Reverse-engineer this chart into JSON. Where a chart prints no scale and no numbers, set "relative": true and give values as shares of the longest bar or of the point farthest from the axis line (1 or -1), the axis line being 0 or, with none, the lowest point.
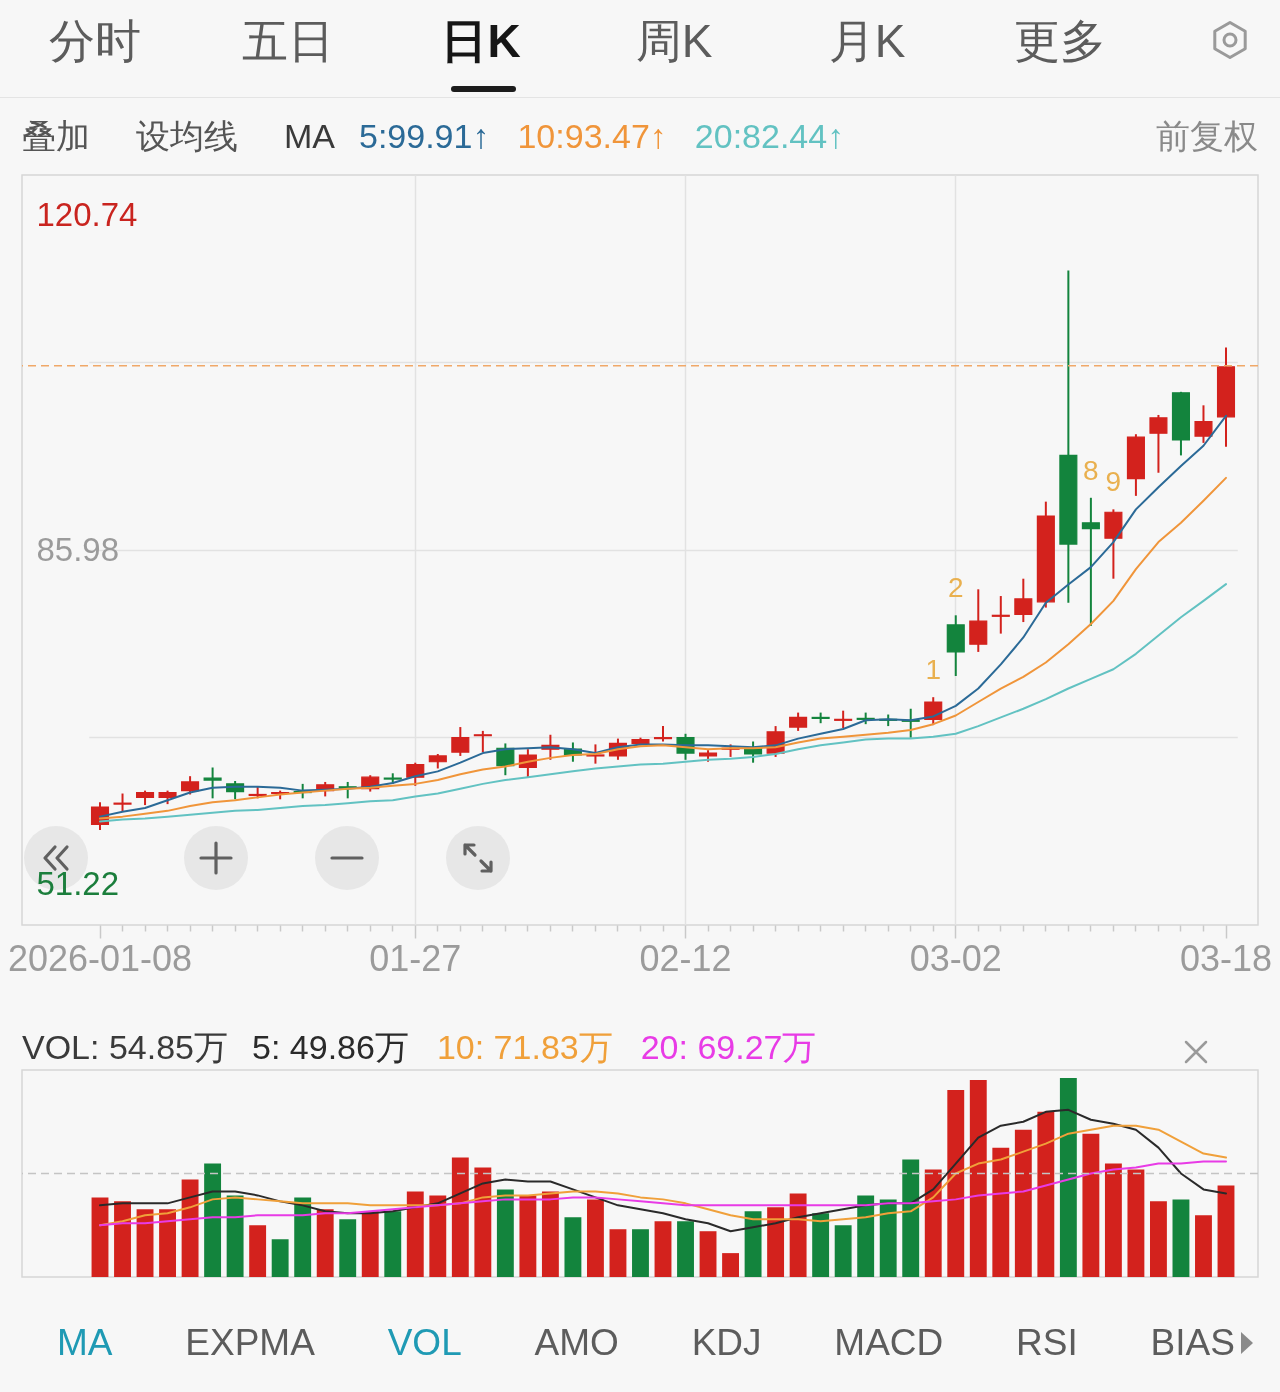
{
  "chart_data": [
    {
      "type": "other",
      "annotations": [
        "分时",
        "五日",
        "日K",
        "周K",
        "月K",
        "更多"
      ]
    },
    {
      "type": "candlestick",
      "annotations": [
        "叠加",
        "设均线",
        "前复权"
      ],
      "legend": "top left",
      "legend_title": "MA",
      "grid": true,
      "categories": [
        "2026-01-08",
        null,
        null,
        null,
        null,
        null,
        null,
        null,
        null,
        null,
        null,
        null,
        null,
        null,
        "01-27",
        null,
        null,
        null,
        null,
        null,
        null,
        null,
        null,
        null,
        null,
        null,
        "02-12",
        null,
        null,
        null,
        null,
        null,
        null,
        null,
        null,
        null,
        null,
        null,
        "03-02",
        null,
        null,
        null,
        null,
        null,
        null,
        null,
        null,
        null,
        null,
        null,
        "03-18"
      ],
      "ylim": [
        47.05,
        124.91
      ],
      "yticks": [
        51.22,
        {
          "value": 66.52,
          "label": null
        },
        85.98,
        {
          "value": 105.45,
          "label": null
        },
        120.74
      ],
      "ohlc": [
        [
          57.5,
          59.8,
          56.9,
          59.3
        ],
        [
          59.6,
          60.7,
          58.8,
          59.7
        ],
        [
          60.3,
          61.0,
          59.5,
          60.8
        ],
        [
          60.3,
          61.0,
          59.6,
          60.8
        ],
        [
          61.0,
          62.5,
          60.6,
          61.9
        ],
        [
          62.3,
          63.4,
          60.2,
          62.1
        ],
        [
          61.7,
          62.0,
          60.1,
          60.9
        ],
        [
          60.5,
          61.4,
          60.2,
          60.6
        ],
        [
          60.7,
          61.0,
          60.1,
          60.8
        ],
        [
          60.9,
          61.7,
          60.2,
          60.8
        ],
        [
          61.0,
          61.9,
          60.4,
          61.6
        ],
        [
          61.4,
          61.9,
          60.2,
          61.3
        ],
        [
          61.2,
          62.6,
          60.9,
          62.4
        ],
        [
          62.3,
          62.8,
          61.7,
          62.2
        ],
        [
          62.4,
          63.9,
          61.5,
          63.7
        ],
        [
          64.0,
          64.8,
          63.3,
          64.6
        ],
        [
          65.0,
          67.6,
          64.6,
          66.5
        ],
        [
          66.7,
          67.2,
          65.0,
          66.8
        ],
        [
          65.4,
          65.9,
          62.6,
          63.6
        ],
        [
          63.4,
          65.3,
          62.4,
          64.7
        ],
        [
          65.3,
          66.8,
          64.2,
          65.7
        ],
        [
          65.3,
          66.0,
          64.0,
          64.7
        ],
        [
          64.6,
          65.8,
          63.8,
          64.7
        ],
        [
          64.6,
          66.4,
          64.2,
          65.9
        ],
        [
          65.9,
          66.5,
          65.7,
          66.3
        ],
        [
          66.4,
          67.7,
          66.1,
          66.5
        ],
        [
          66.5,
          66.9,
          64.2,
          64.9
        ],
        [
          64.6,
          65.2,
          64.0,
          64.9
        ],
        [
          65.3,
          65.8,
          64.5,
          65.4
        ],
        [
          65.4,
          66.1,
          63.9,
          64.8
        ],
        [
          64.9,
          67.7,
          64.5,
          67.1
        ],
        [
          67.6,
          69.1,
          67.2,
          68.6
        ],
        [
          68.6,
          69.1,
          68.0,
          68.5
        ],
        [
          68.3,
          69.3,
          67.5,
          68.4
        ],
        [
          68.5,
          69.1,
          67.9,
          68.4
        ],
        [
          68.4,
          68.9,
          67.7,
          68.3
        ],
        [
          68.3,
          69.5,
          66.5,
          68.2
        ],
        [
          68.4,
          70.7,
          67.8,
          70.2
        ],
        [
          78.2,
          79.2,
          72.9,
          75.4
        ],
        [
          76.2,
          81.9,
          75.4,
          78.6
        ],
        [
          79.1,
          81.2,
          77.3,
          79.2
        ],
        [
          79.3,
          83.0,
          78.5,
          80.9
        ],
        [
          80.6,
          91.0,
          80.0,
          89.5
        ],
        [
          95.8,
          115.0,
          80.5,
          86.6
        ],
        [
          88.8,
          91.4,
          78.1,
          88.2
        ],
        [
          87.2,
          90.2,
          83.0,
          89.9
        ],
        [
          93.4,
          98.0,
          91.6,
          97.7
        ],
        [
          98.1,
          100.0,
          94.0,
          99.7
        ],
        [
          102.3,
          102.4,
          95.8,
          97.4
        ],
        [
          97.8,
          101.0,
          97.1,
          99.3
        ],
        [
          99.8,
          107.0,
          96.7,
          105.0
        ]
      ],
      "colors": [
        "#d3221d",
        "#d3221d",
        "#d3221d",
        "#d3221d",
        "#d3221d",
        "#13843d",
        "#13843d",
        "#d3221d",
        "#d3221d",
        "#13843d",
        "#d3221d",
        "#13843d",
        "#d3221d",
        "#13843d",
        "#d3221d",
        "#d3221d",
        "#d3221d",
        "#d3221d",
        "#13843d",
        "#d3221d",
        "#d3221d",
        "#13843d",
        "#d3221d",
        "#d3221d",
        "#d3221d",
        "#d3221d",
        "#13843d",
        "#d3221d",
        "#d3221d",
        "#13843d",
        "#d3221d",
        "#d3221d",
        "#13843d",
        "#d3221d",
        "#13843d",
        "#13843d",
        "#13843d",
        "#d3221d",
        "#13843d",
        "#d3221d",
        "#d3221d",
        "#d3221d",
        "#d3221d",
        "#13843d",
        "#13843d",
        "#d3221d",
        "#d3221d",
        "#d3221d",
        "#13843d",
        "#d3221d",
        "#d3221d"
      ],
      "value_labels": [
        null,
        null,
        null,
        null,
        null,
        null,
        null,
        null,
        null,
        null,
        null,
        null,
        null,
        null,
        null,
        null,
        null,
        null,
        null,
        null,
        null,
        null,
        null,
        null,
        null,
        null,
        null,
        null,
        null,
        null,
        null,
        null,
        null,
        null,
        null,
        null,
        null,
        "1",
        "2",
        null,
        null,
        null,
        null,
        null,
        "8",
        "9",
        null,
        null,
        null,
        null,
        null
      ],
      "series": [
        {
          "name": "5:99.91↑",
          "type": "line",
          "color": "#2b6a97",
          "values": [
            58.3,
            58.8,
            59.2,
            60.0,
            60.8,
            61.3,
            61.4,
            61.4,
            61.3,
            61.0,
            61.1,
            61.2,
            61.4,
            61.8,
            62.5,
            63.0,
            63.9,
            64.9,
            65.3,
            65.4,
            65.5,
            65.3,
            64.9,
            65.5,
            65.8,
            65.8,
            65.7,
            65.7,
            65.6,
            65.5,
            65.7,
            66.4,
            66.9,
            67.4,
            68.3,
            68.4,
            68.3,
            68.7,
            69.8,
            71.6,
            74.1,
            76.9,
            80.5,
            82.4,
            84.2,
            86.8,
            90.2,
            92.5,
            94.7,
            96.8,
            99.91
          ]
        },
        {
          "name": "10:93.47↑",
          "type": "line",
          "color": "#f0953a",
          "values": [
            58.1,
            58.3,
            58.6,
            58.9,
            59.4,
            59.8,
            60.0,
            60.3,
            60.6,
            60.8,
            61.0,
            61.2,
            61.3,
            61.5,
            61.7,
            62.1,
            62.7,
            63.2,
            63.5,
            64.0,
            64.4,
            64.7,
            64.8,
            65.3,
            65.6,
            65.7,
            65.5,
            65.3,
            65.4,
            65.4,
            65.5,
            66.0,
            66.4,
            66.6,
            66.8,
            67.0,
            67.3,
            67.9,
            68.8,
            70.2,
            71.6,
            72.8,
            74.3,
            76.2,
            78.3,
            80.7,
            84.0,
            86.8,
            88.8,
            91.1,
            93.47
          ]
        },
        {
          "name": "20:82.44↑",
          "type": "line",
          "color": "#62c2c2",
          "values": [
            57.8,
            58.0,
            58.1,
            58.3,
            58.5,
            58.7,
            58.9,
            59.0,
            59.2,
            59.4,
            59.5,
            59.7,
            59.9,
            60.0,
            60.4,
            60.7,
            61.2,
            61.7,
            62.1,
            62.4,
            62.7,
            63.0,
            63.3,
            63.5,
            63.7,
            63.8,
            64.0,
            64.2,
            64.3,
            64.5,
            64.8,
            65.3,
            65.7,
            66.0,
            66.3,
            66.4,
            66.4,
            66.6,
            66.9,
            67.7,
            68.6,
            69.5,
            70.5,
            71.6,
            72.6,
            73.6,
            75.2,
            77.1,
            79.0,
            80.7,
            82.44
          ]
        }
      ],
      "ref_lines": [
        {
          "axis": "y",
          "value": 105.1,
          "color": "#f0a868",
          "line_style": "dashed"
        }
      ]
    },
    {
      "type": "bar",
      "relative": true,
      "legend": "top left",
      "legend_title": "VOL: 54.85万",
      "categories": [
        null,
        null,
        null,
        null,
        null,
        null,
        null,
        null,
        null,
        null,
        null,
        null,
        null,
        null,
        null,
        null,
        null,
        null,
        null,
        null,
        null,
        null,
        null,
        null,
        null,
        null,
        null,
        null,
        null,
        null,
        null,
        null,
        null,
        null,
        null,
        null,
        null,
        null,
        null,
        null,
        null,
        null,
        null,
        null,
        null,
        null,
        null,
        null,
        null,
        null,
        null
      ],
      "series": [
        {
          "type": "bar",
          "colors": [
            "#d3221d",
            "#d3221d",
            "#d3221d",
            "#d3221d",
            "#d3221d",
            "#13843d",
            "#13843d",
            "#d3221d",
            "#13843d",
            "#13843d",
            "#d3221d",
            "#13843d",
            "#d3221d",
            "#13843d",
            "#d3221d",
            "#d3221d",
            "#d3221d",
            "#d3221d",
            "#13843d",
            "#d3221d",
            "#d3221d",
            "#13843d",
            "#d3221d",
            "#d3221d",
            "#13843d",
            "#d3221d",
            "#13843d",
            "#d3221d",
            "#d3221d",
            "#13843d",
            "#d3221d",
            "#d3221d",
            "#13843d",
            "#13843d",
            "#13843d",
            "#13843d",
            "#13843d",
            "#d3221d",
            "#d3221d",
            "#d3221d",
            "#d3221d",
            "#d3221d",
            "#d3221d",
            "#13843d",
            "#d3221d",
            "#d3221d",
            "#d3221d",
            "#d3221d",
            "#13843d",
            "#d3221d",
            "#d3221d"
          ],
          "values": [
            0.4,
            0.38,
            0.34,
            0.34,
            0.49,
            0.57,
            0.41,
            0.26,
            0.19,
            0.4,
            0.34,
            0.29,
            0.33,
            0.33,
            0.43,
            0.41,
            0.6,
            0.55,
            0.44,
            0.41,
            0.43,
            0.3,
            0.39,
            0.24,
            0.24,
            0.28,
            0.28,
            0.23,
            0.12,
            0.33,
            0.35,
            0.42,
            0.32,
            0.26,
            0.41,
            0.39,
            0.59,
            0.54,
            0.94,
            0.99,
            0.65,
            0.74,
            0.83,
            1,
            0.72,
            0.57,
            0.54,
            0.38,
            0.39,
            0.31,
            0.46
          ]
        },
        {
          "name": "5: 49.86万",
          "type": "line",
          "color": "#2a2a2a",
          "values": [
            0.36,
            0.37,
            0.37,
            0.37,
            0.4,
            0.43,
            0.43,
            0.41,
            0.38,
            0.36,
            0.33,
            0.32,
            0.32,
            0.33,
            0.35,
            0.37,
            0.42,
            0.47,
            0.49,
            0.48,
            0.48,
            0.44,
            0.4,
            0.36,
            0.34,
            0.32,
            0.29,
            0.27,
            0.23,
            0.25,
            0.27,
            0.3,
            0.32,
            0.34,
            0.36,
            0.37,
            0.37,
            0.44,
            0.57,
            0.7,
            0.76,
            0.78,
            0.83,
            0.84,
            0.79,
            0.77,
            0.74,
            0.65,
            0.52,
            0.44,
            0.42
          ]
        },
        {
          "name": "10: 71.83万",
          "type": "line",
          "color": "#f0a03a",
          "values": [
            0.26,
            0.28,
            0.31,
            0.32,
            0.35,
            0.39,
            0.4,
            0.39,
            0.38,
            0.37,
            0.37,
            0.37,
            0.36,
            0.36,
            0.36,
            0.36,
            0.37,
            0.4,
            0.41,
            0.41,
            0.42,
            0.43,
            0.43,
            0.42,
            0.4,
            0.39,
            0.37,
            0.34,
            0.31,
            0.29,
            0.29,
            0.29,
            0.28,
            0.29,
            0.3,
            0.32,
            0.33,
            0.4,
            0.52,
            0.57,
            0.59,
            0.63,
            0.67,
            0.72,
            0.74,
            0.76,
            0.76,
            0.74,
            0.68,
            0.62,
            0.6
          ]
        },
        {
          "name": "20: 69.27万",
          "type": "line",
          "color": "#e83be6",
          "values": [
            0.26,
            0.27,
            0.27,
            0.28,
            0.29,
            0.3,
            0.3,
            0.31,
            0.31,
            0.31,
            0.32,
            0.32,
            0.33,
            0.34,
            0.35,
            0.36,
            0.37,
            0.38,
            0.39,
            0.39,
            0.39,
            0.4,
            0.4,
            0.39,
            0.38,
            0.37,
            0.36,
            0.36,
            0.36,
            0.36,
            0.36,
            0.36,
            0.36,
            0.36,
            0.36,
            0.37,
            0.37,
            0.38,
            0.39,
            0.41,
            0.42,
            0.43,
            0.46,
            0.49,
            0.52,
            0.54,
            0.55,
            0.57,
            0.57,
            0.58,
            0.58
          ]
        }
      ],
      "ref_lines": [
        {
          "axis": "y",
          "value": 0.52,
          "color": "#c4c4c4",
          "line_style": "dashed"
        }
      ]
    },
    {
      "type": "other",
      "annotations": [
        "MA",
        "EXPMA",
        "VOL",
        "AMO",
        "KDJ",
        "MACD",
        "RSI",
        "BIAS"
      ]
    }
  ]
}
